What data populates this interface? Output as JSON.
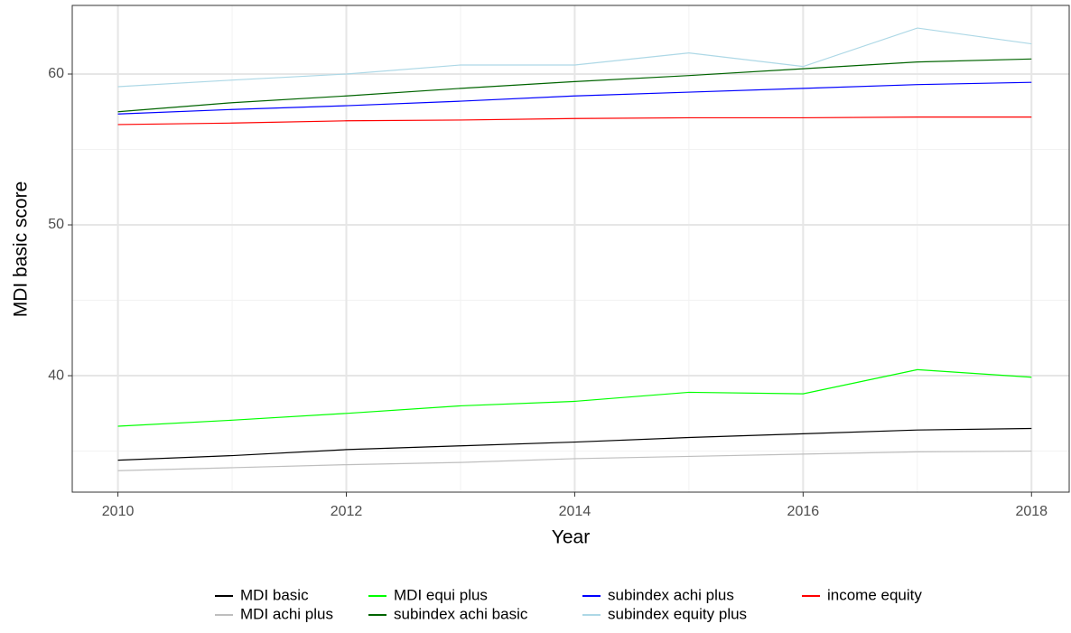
{
  "chart_data": {
    "type": "line",
    "x_label": "Year",
    "y_label": "MDI basic score",
    "x": [
      2010,
      2011,
      2012,
      2013,
      2014,
      2015,
      2016,
      2017,
      2018
    ],
    "xlim": [
      2009.6,
      2018.33
    ],
    "xticks": [
      2010,
      2012,
      2014,
      2016,
      2018
    ],
    "minor_xticks": [
      2011,
      2013,
      2015,
      2017
    ],
    "ylim": [
      32.28,
      64.55
    ],
    "yticks": [
      40,
      50,
      60
    ],
    "minor_yticks": [
      35,
      45,
      55
    ],
    "grid": true,
    "legend": "bottom",
    "series": [
      {
        "name": "MDI basic",
        "color": "#000000",
        "values": [
          34.4,
          34.7,
          35.1,
          35.35,
          35.6,
          35.9,
          36.15,
          36.4,
          36.5
        ]
      },
      {
        "name": "MDI achi plus",
        "color": "#bebebe",
        "values": [
          33.7,
          33.9,
          34.1,
          34.25,
          34.5,
          34.65,
          34.8,
          34.95,
          35.0
        ]
      },
      {
        "name": "MDI equi plus",
        "color": "#00ff00",
        "values": [
          36.65,
          37.05,
          37.5,
          38.0,
          38.3,
          38.9,
          38.8,
          40.4,
          39.9
        ]
      },
      {
        "name": "subindex achi basic",
        "color": "#006400",
        "values": [
          57.5,
          58.1,
          58.55,
          59.05,
          59.5,
          59.9,
          60.35,
          60.8,
          61.0
        ]
      },
      {
        "name": "subindex achi plus",
        "color": "#0000ff",
        "values": [
          57.35,
          57.65,
          57.9,
          58.2,
          58.55,
          58.8,
          59.05,
          59.3,
          59.45
        ]
      },
      {
        "name": "subindex equity plus",
        "color": "#add8e6",
        "values": [
          59.16,
          59.6,
          60.0,
          60.6,
          60.6,
          61.4,
          60.5,
          63.05,
          62.0
        ]
      },
      {
        "name": "income equity",
        "color": "#ff0000",
        "values": [
          56.65,
          56.75,
          56.9,
          56.95,
          57.05,
          57.1,
          57.1,
          57.15,
          57.15
        ]
      }
    ]
  }
}
